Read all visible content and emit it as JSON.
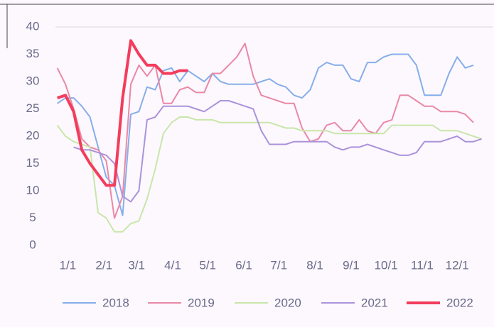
{
  "chart_data": {
    "type": "line",
    "x": [
      -9,
      -2,
      5,
      12,
      19,
      26,
      33,
      40,
      47,
      54,
      61,
      68,
      75,
      82,
      89,
      96,
      103,
      110,
      117,
      124,
      131,
      138,
      145,
      152,
      159,
      166,
      173,
      180,
      187,
      194,
      201,
      208,
      215,
      222,
      229,
      236,
      243,
      250,
      257,
      264,
      271,
      278,
      285,
      292,
      299,
      306,
      313,
      320,
      327,
      334,
      341,
      348,
      355
    ],
    "xlim": [
      -10,
      365
    ],
    "xticks": [
      {
        "value": 0,
        "label": "1/1"
      },
      {
        "value": 31,
        "label": "2/1"
      },
      {
        "value": 59,
        "label": "3/1"
      },
      {
        "value": 90,
        "label": "4/1"
      },
      {
        "value": 120,
        "label": "5/1"
      },
      {
        "value": 151,
        "label": "6/1"
      },
      {
        "value": 181,
        "label": "7/1"
      },
      {
        "value": 212,
        "label": "8/1"
      },
      {
        "value": 243,
        "label": "9/1"
      },
      {
        "value": 273,
        "label": "10/1"
      },
      {
        "value": 304,
        "label": "11/1"
      },
      {
        "value": 334,
        "label": "12/1"
      }
    ],
    "ylim": [
      0,
      40
    ],
    "yticks": [
      0,
      5,
      10,
      15,
      20,
      25,
      30,
      35,
      40
    ],
    "grid": false,
    "legend": "bottom",
    "series": [
      {
        "name": "2018",
        "color": "#86aeea",
        "values": [
          26,
          27,
          27,
          25.5,
          23.5,
          18,
          12.5,
          11,
          5.5,
          24,
          24.5,
          29,
          28.5,
          32,
          32.5,
          30,
          32,
          31,
          30,
          31.5,
          30,
          29.5,
          29.5,
          29.5,
          29.5,
          30,
          30.5,
          29.5,
          29,
          27.5,
          27,
          28.5,
          32.5,
          33.5,
          33,
          33,
          30.5,
          30,
          33.5,
          33.5,
          34.5,
          35,
          35,
          35,
          33,
          27.5,
          27.5,
          27.5,
          31.5,
          34.5,
          32.5,
          33,
          null
        ]
      },
      {
        "name": "2019",
        "color": "#ea88a6",
        "values": [
          32.5,
          29.5,
          25,
          19.5,
          18,
          17.5,
          15.5,
          5,
          9,
          29.5,
          33,
          31,
          33,
          26,
          26,
          28.5,
          29,
          28,
          28,
          31.5,
          31.5,
          33,
          34.5,
          37,
          31,
          27.5,
          27,
          26.5,
          26,
          26,
          21.5,
          19,
          19.5,
          22,
          22.5,
          21,
          21,
          23,
          21,
          20.5,
          22.5,
          23,
          27.5,
          27.5,
          26.5,
          25.5,
          25.5,
          24.5,
          24.5,
          24.5,
          24,
          22.5,
          null
        ]
      },
      {
        "name": "2020",
        "color": "#c9e6aa",
        "values": [
          22,
          20,
          19,
          18.5,
          18,
          6,
          5,
          2.5,
          2.5,
          4,
          4.5,
          8.5,
          14,
          20.5,
          22.5,
          23.5,
          23.5,
          23,
          23,
          23,
          22.5,
          22.5,
          22.5,
          22.5,
          22.5,
          22.5,
          22.5,
          22,
          21.5,
          21.5,
          21,
          21,
          21,
          21,
          20.5,
          20.5,
          20.5,
          20.5,
          20.5,
          20.5,
          20.5,
          22,
          22,
          22,
          22,
          22,
          22,
          21,
          21,
          21,
          20.5,
          20,
          19.5
        ]
      },
      {
        "name": "2021",
        "color": "#ab92dc",
        "values": [
          null,
          null,
          18,
          17.5,
          17.5,
          17,
          16.5,
          15,
          9,
          8,
          10,
          23,
          23.5,
          25.5,
          25.5,
          25.5,
          25.5,
          25,
          24.5,
          25.5,
          26.5,
          26.5,
          26,
          25.5,
          25,
          21,
          18.5,
          18.5,
          18.5,
          19,
          19,
          19,
          19,
          19,
          18,
          17.5,
          18,
          18,
          18.5,
          18,
          17.5,
          17,
          16.5,
          16.5,
          17,
          19,
          19,
          19,
          19.5,
          20,
          19,
          19,
          19.5
        ]
      },
      {
        "name": "2022",
        "color": "#f43c5c",
        "values": [
          27,
          27.5,
          24.5,
          17.5,
          15,
          13,
          11,
          11,
          27,
          37.5,
          35,
          33,
          33,
          31.5,
          31.5,
          32,
          32,
          null,
          null,
          null,
          null,
          null,
          null,
          null,
          null,
          null,
          null,
          null,
          null,
          null,
          null,
          null,
          null,
          null,
          null,
          null,
          null,
          null,
          null,
          null,
          null,
          null,
          null,
          null,
          null,
          null,
          null,
          null,
          null,
          null,
          null,
          null,
          null
        ]
      }
    ]
  }
}
